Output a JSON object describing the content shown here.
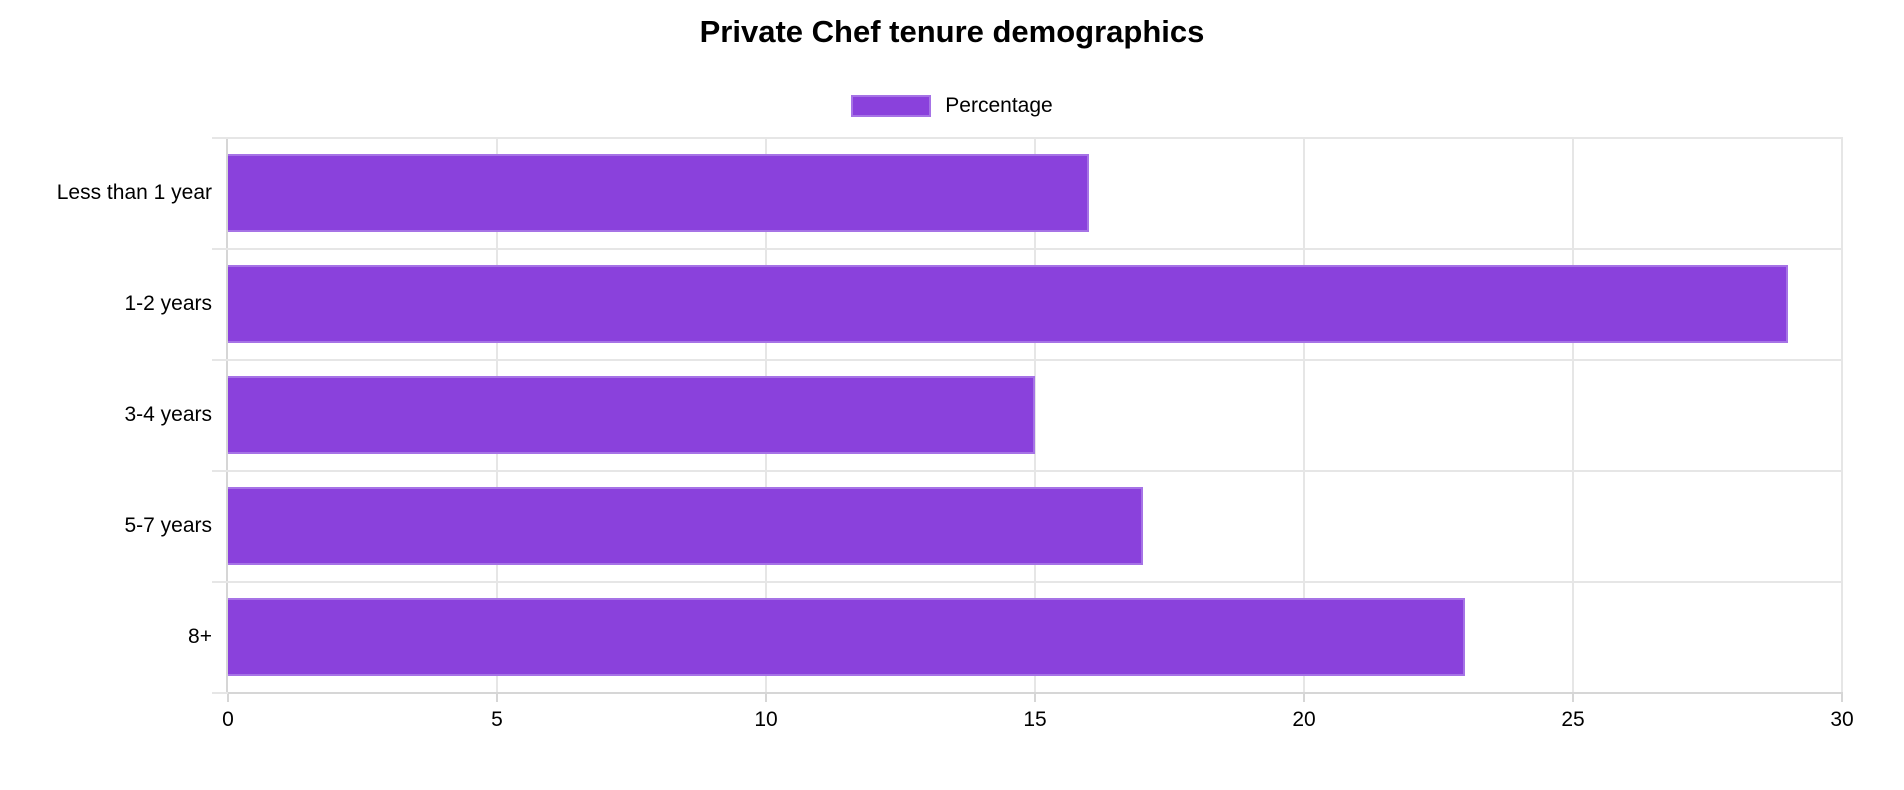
{
  "chart_data": {
    "type": "bar",
    "orientation": "horizontal",
    "title": "Private Chef tenure demographics",
    "categories": [
      "Less than 1 year",
      "1-2 years",
      "3-4 years",
      "5-7 years",
      "8+"
    ],
    "series": [
      {
        "name": "Percentage",
        "values": [
          16,
          29,
          15,
          17,
          23
        ]
      }
    ],
    "xlabel": "",
    "ylabel": "",
    "xlim": [
      0,
      30
    ],
    "xticks": [
      0,
      5,
      10,
      15,
      20,
      25,
      30
    ],
    "grid": true,
    "legend_position": "top-center",
    "colors": {
      "bar_fill": "#8a41dc",
      "bar_border": "#a673e6",
      "gridline": "#e6e6e6",
      "axis_line": "#d6d6d6",
      "text": "#000000",
      "background": "#ffffff"
    }
  }
}
